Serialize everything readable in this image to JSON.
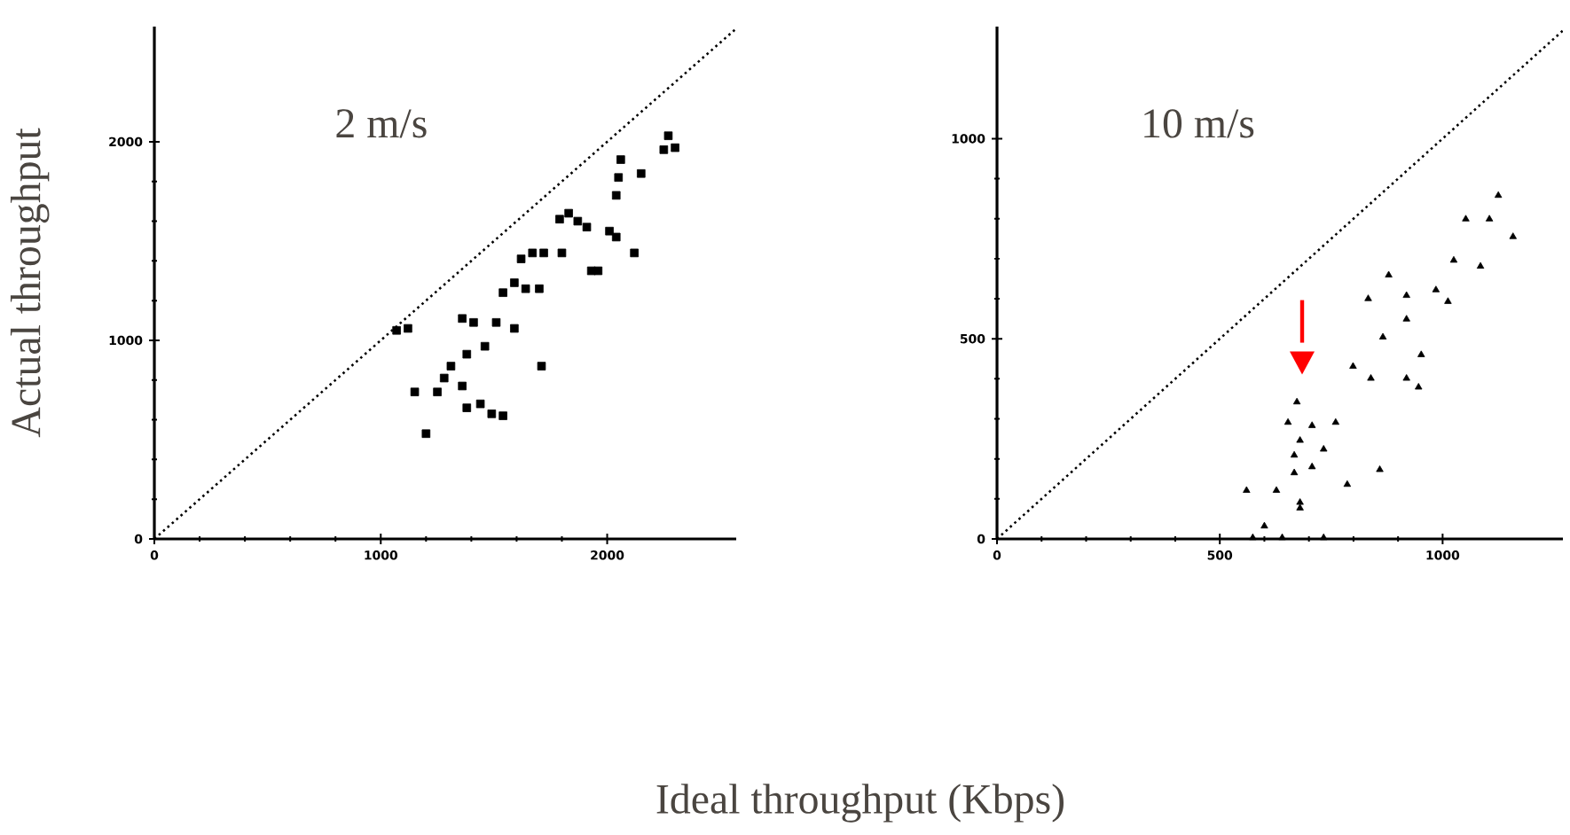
{
  "chart_data": [
    {
      "type": "scatter",
      "title": "2 m/s",
      "ylabel": "Actual throughput",
      "xlabel": "Ideal throughput (Kbps)",
      "xlim": [
        0,
        2570
      ],
      "ylim": [
        0,
        2580
      ],
      "xticks": [
        0,
        1000,
        2000
      ],
      "yticks": [
        0,
        1000,
        2000
      ],
      "series": [
        {
          "color": "#000000",
          "marker": "square",
          "x": [
            2270,
            2300,
            2250,
            2060,
            2050,
            2150,
            2040,
            1830,
            1870,
            1790,
            1910,
            2010,
            2040,
            2120,
            1800,
            1960,
            1670,
            1620,
            1720,
            1640,
            1700,
            1540,
            1590,
            1360,
            1410,
            1510,
            1590,
            1070,
            1120,
            1380,
            1310,
            1460,
            1280,
            1250,
            1150,
            1360,
            1380,
            1440,
            1490,
            1540,
            1710,
            1200,
            1930
          ],
          "values": [
            2030,
            1970,
            1960,
            1910,
            1820,
            1840,
            1730,
            1640,
            1600,
            1610,
            1570,
            1550,
            1520,
            1440,
            1440,
            1350,
            1440,
            1410,
            1440,
            1260,
            1260,
            1240,
            1290,
            1110,
            1090,
            1090,
            1060,
            1050,
            1060,
            930,
            870,
            970,
            810,
            740,
            740,
            770,
            660,
            680,
            630,
            620,
            870,
            530,
            1350
          ]
        },
        {
          "type": "line",
          "color": "#000000",
          "line_style": "dotted",
          "x": [
            0,
            2570
          ],
          "values": [
            0,
            2570
          ]
        }
      ]
    },
    {
      "type": "scatter",
      "title": "10 m/s",
      "xlim": [
        0,
        1270
      ],
      "ylim": [
        0,
        1280
      ],
      "xticks": [
        0,
        500,
        1000
      ],
      "yticks": [
        0,
        500,
        1000
      ],
      "series": [
        {
          "color": "#000000",
          "marker": "triangle",
          "x": [
            1125,
            1052,
            1105,
            1158,
            1025,
            1085,
            879,
            833,
            919,
            985,
            1012,
            919,
            866,
            952,
            799,
            839,
            919,
            946,
            673,
            653,
            707,
            760,
            680,
            733,
            667,
            707,
            859,
            786,
            667,
            560,
            627,
            680,
            680,
            600,
            574,
            640,
            733
          ],
          "values": [
            858,
            799,
            799,
            755,
            696,
            681,
            659,
            600,
            608,
            622,
            593,
            549,
            504,
            460,
            431,
            401,
            401,
            379,
            342,
            291,
            283,
            291,
            246,
            224,
            209,
            180,
            173,
            136,
            165,
            121,
            121,
            91,
            77,
            32,
            3,
            3,
            3
          ]
        },
        {
          "type": "line",
          "color": "#000000",
          "line_style": "dotted",
          "x": [
            0,
            1270
          ],
          "values": [
            0,
            1270
          ]
        }
      ]
    }
  ]
}
